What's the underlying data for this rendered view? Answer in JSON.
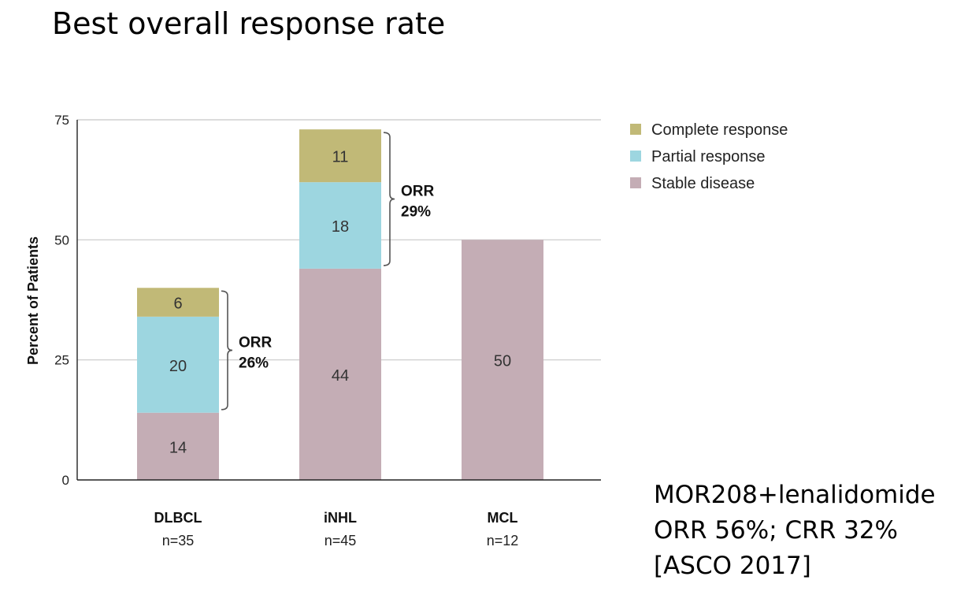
{
  "slide": {
    "title": "Best overall response rate",
    "notes": [
      "MOR208+lenalidomide",
      "ORR 56%; CRR 32%",
      "[ASCO 2017]"
    ]
  },
  "chart_data": {
    "type": "bar",
    "stacked": true,
    "title": "",
    "xlabel": "",
    "ylabel": "Percent of Patients",
    "ylim": [
      0,
      75
    ],
    "yticks": [
      0,
      25,
      50,
      75
    ],
    "grid": true,
    "legend_position": "top-right",
    "categories": [
      "DLBCL",
      "iNHL",
      "MCL"
    ],
    "category_sublabels": [
      "n=35",
      "n=45",
      "n=12"
    ],
    "series": [
      {
        "name": "Stable disease",
        "color": "#c4adb5",
        "values": [
          14,
          44,
          50
        ]
      },
      {
        "name": "Partial response",
        "color": "#9dd6e0",
        "values": [
          20,
          18,
          0
        ]
      },
      {
        "name": "Complete response",
        "color": "#c1b977",
        "values": [
          6,
          11,
          0
        ]
      }
    ],
    "legend_order": [
      "Complete response",
      "Partial response",
      "Stable disease"
    ],
    "annotations": [
      {
        "category": "DLBCL",
        "label": "ORR",
        "value": "26%",
        "from": 14,
        "to": 40
      },
      {
        "category": "iNHL",
        "label": "ORR",
        "value": "29%",
        "from": 44,
        "to": 73
      }
    ]
  }
}
